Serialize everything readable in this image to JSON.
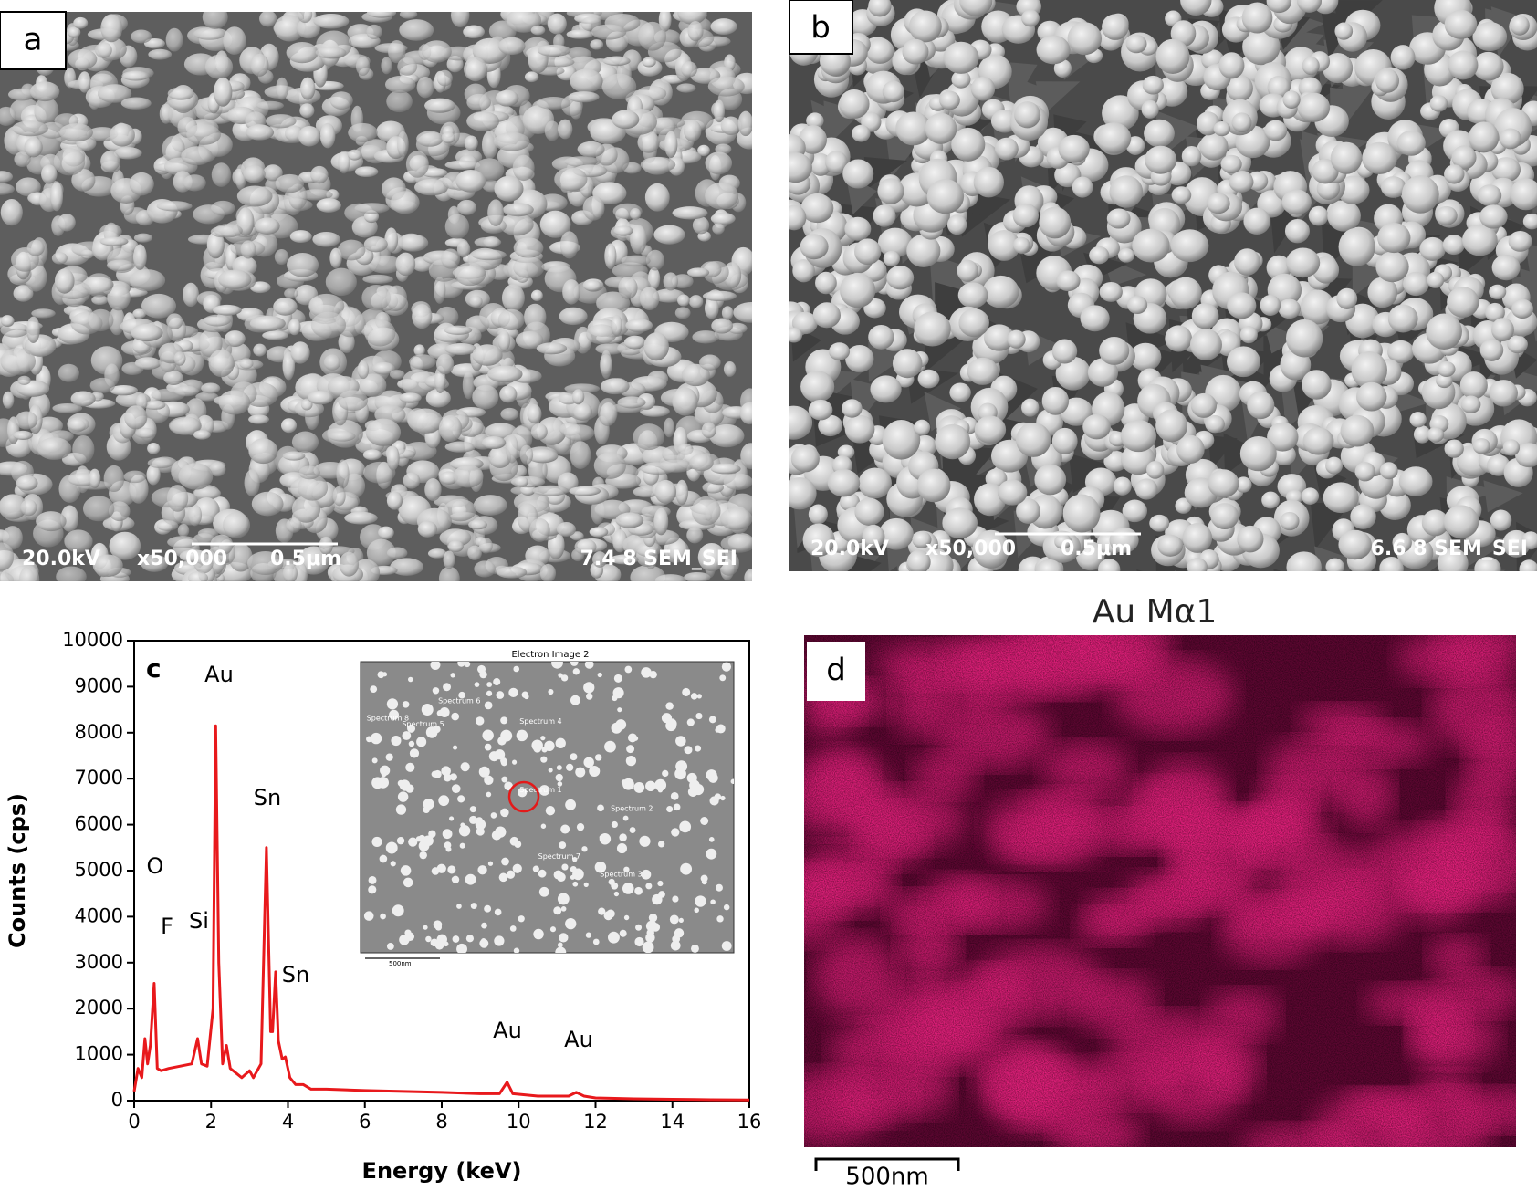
{
  "panels": {
    "a": {
      "label": "a",
      "overlay": [
        "20.0kV",
        "x50,000",
        "0.5μm",
        "7.4 8 SEM_SEI"
      ]
    },
    "b": {
      "label": "b",
      "overlay": [
        "20.0kV",
        "x50,000",
        "0.5μm",
        "6.6 8 SEM_SEI"
      ]
    },
    "c_inset": {
      "title": "Electron Image 2",
      "spectra": [
        "Spectrum 8",
        "Spectrum 6",
        "Spectrum 5",
        "Spectrum 4",
        "Spectrum 1",
        "Spectrum 2",
        "Spectrum 7",
        "Spectrum 3"
      ],
      "scale": "500nm"
    },
    "d": {
      "label": "d",
      "title": "Au Mα1",
      "scale": "500nm"
    }
  },
  "chart_data": {
    "type": "line",
    "label": "c",
    "xlabel": "Energy (keV)",
    "ylabel": "Counts (cps)",
    "xlim": [
      0,
      16
    ],
    "xticks": [
      0,
      2,
      4,
      6,
      8,
      10,
      12,
      14,
      16
    ],
    "ylim": [
      0,
      10000
    ],
    "yticks": [
      0,
      1000,
      2000,
      3000,
      4000,
      5000,
      6000,
      7000,
      8000,
      9000,
      10000
    ],
    "color": "#e8191c",
    "x": [
      0,
      0.1,
      0.2,
      0.28,
      0.35,
      0.42,
      0.52,
      0.6,
      0.7,
      0.9,
      1.2,
      1.5,
      1.65,
      1.75,
      1.9,
      2.05,
      2.12,
      2.2,
      2.3,
      2.4,
      2.5,
      2.8,
      3.0,
      3.1,
      3.3,
      3.44,
      3.55,
      3.6,
      3.68,
      3.75,
      3.85,
      3.93,
      4.05,
      4.2,
      4.4,
      4.6,
      5,
      6,
      7,
      8,
      9,
      9.5,
      9.7,
      9.85,
      10.5,
      11.3,
      11.5,
      11.7,
      12,
      13,
      14,
      15,
      16
    ],
    "values": [
      200,
      700,
      500,
      1350,
      800,
      1200,
      2550,
      700,
      650,
      700,
      750,
      800,
      1350,
      800,
      750,
      2000,
      8150,
      3000,
      800,
      1200,
      700,
      500,
      650,
      500,
      800,
      5500,
      1500,
      1500,
      2800,
      1300,
      900,
      950,
      500,
      350,
      350,
      250,
      250,
      220,
      200,
      180,
      150,
      150,
      400,
      150,
      100,
      100,
      180,
      100,
      60,
      40,
      30,
      20,
      15
    ],
    "annotations": [
      "O",
      "F",
      "Si",
      "Au",
      "Sn",
      "Sn",
      "Au",
      "Au"
    ]
  }
}
